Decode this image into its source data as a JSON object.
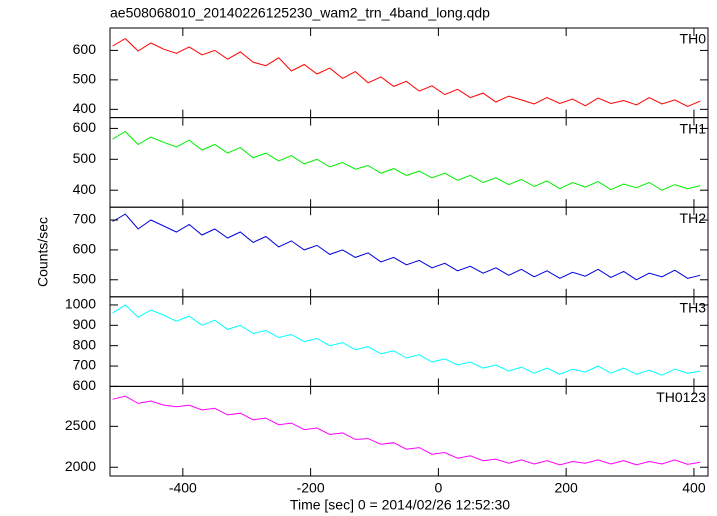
{
  "chart_data": {
    "type": "line",
    "title": "ae508068010_20140226125230_wam2_trn_4band_long.qdp",
    "x_label": "Time [sec] 0 = 2014/02/26 12:52:30",
    "y_label": "Counts/sec",
    "xlim": [
      -514,
      422
    ],
    "xticks": [
      -400,
      -200,
      0,
      200,
      400
    ],
    "x": [
      -510,
      -490,
      -470,
      -450,
      -430,
      -410,
      -390,
      -370,
      -350,
      -330,
      -310,
      -290,
      -270,
      -250,
      -230,
      -210,
      -190,
      -170,
      -150,
      -130,
      -110,
      -90,
      -70,
      -50,
      -30,
      -10,
      10,
      30,
      50,
      70,
      90,
      110,
      130,
      150,
      170,
      190,
      210,
      230,
      250,
      270,
      290,
      310,
      330,
      350,
      370,
      390,
      410
    ],
    "panels": [
      {
        "name": "TH0",
        "color": "#ff0000",
        "ylim": [
          372,
          676
        ],
        "yticks": [
          400,
          500,
          600
        ],
        "values": [
          615,
          640,
          598,
          625,
          604,
          590,
          612,
          585,
          600,
          570,
          595,
          560,
          548,
          575,
          530,
          552,
          520,
          540,
          505,
          528,
          490,
          510,
          478,
          495,
          462,
          480,
          450,
          468,
          440,
          455,
          425,
          445,
          432,
          418,
          440,
          420,
          435,
          412,
          438,
          420,
          430,
          415,
          440,
          418,
          432,
          410,
          428
        ]
      },
      {
        "name": "TH1",
        "color": "#00ee00",
        "ylim": [
          345,
          635
        ],
        "yticks": [
          400,
          500,
          600
        ],
        "values": [
          565,
          590,
          548,
          572,
          555,
          540,
          562,
          530,
          548,
          520,
          538,
          505,
          520,
          495,
          512,
          485,
          500,
          475,
          490,
          468,
          480,
          455,
          470,
          448,
          462,
          440,
          455,
          432,
          448,
          425,
          440,
          418,
          435,
          412,
          430,
          405,
          425,
          410,
          428,
          402,
          420,
          408,
          425,
          400,
          418,
          405,
          415
        ]
      },
      {
        "name": "TH2",
        "color": "#0000dd",
        "ylim": [
          443,
          743
        ],
        "yticks": [
          500,
          600,
          700
        ],
        "values": [
          695,
          720,
          670,
          700,
          680,
          660,
          685,
          650,
          670,
          640,
          660,
          625,
          645,
          610,
          630,
          600,
          615,
          585,
          600,
          575,
          590,
          560,
          575,
          550,
          565,
          540,
          555,
          530,
          545,
          522,
          540,
          515,
          535,
          510,
          530,
          505,
          525,
          512,
          535,
          508,
          528,
          500,
          522,
          510,
          532,
          505,
          515
        ]
      },
      {
        "name": "TH3",
        "color": "#00ffff",
        "ylim": [
          600,
          1040
        ],
        "yticks": [
          600,
          700,
          800,
          900,
          1000
        ],
        "values": [
          960,
          1000,
          940,
          975,
          950,
          920,
          945,
          900,
          925,
          880,
          900,
          860,
          875,
          840,
          855,
          820,
          835,
          800,
          815,
          780,
          795,
          760,
          775,
          740,
          755,
          720,
          735,
          705,
          720,
          690,
          705,
          675,
          695,
          665,
          690,
          660,
          685,
          670,
          700,
          665,
          690,
          660,
          680,
          655,
          685,
          665,
          675
        ]
      },
      {
        "name": "TH0123",
        "color": "#ff00ff",
        "ylim": [
          1893,
          2988
        ],
        "yticks": [
          2000,
          2500
        ],
        "values": [
          2830,
          2870,
          2780,
          2810,
          2760,
          2740,
          2760,
          2700,
          2720,
          2640,
          2660,
          2580,
          2600,
          2520,
          2540,
          2460,
          2480,
          2400,
          2420,
          2340,
          2350,
          2280,
          2300,
          2220,
          2240,
          2160,
          2180,
          2110,
          2140,
          2080,
          2100,
          2050,
          2090,
          2040,
          2080,
          2030,
          2070,
          2050,
          2090,
          2040,
          2080,
          2030,
          2070,
          2040,
          2090,
          2035,
          2060
        ]
      }
    ]
  }
}
